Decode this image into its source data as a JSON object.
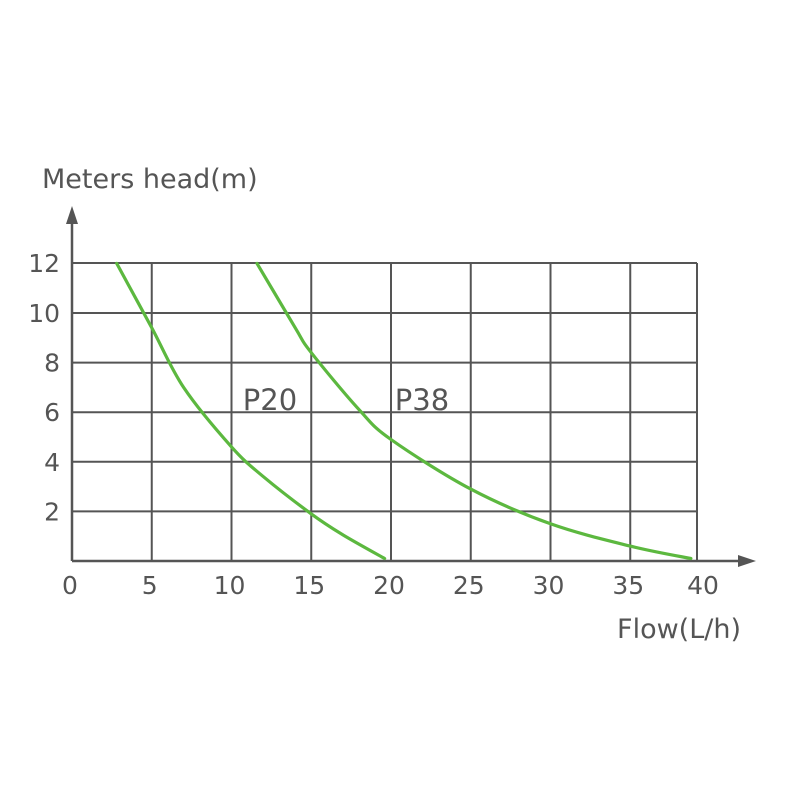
{
  "chart_data": {
    "type": "line",
    "ylabel": "Meters head(m)",
    "xlabel": "Flow(L/h)",
    "x_ticks": [
      "0",
      "5",
      "10",
      "15",
      "20",
      "25",
      "30",
      "35",
      "40"
    ],
    "y_ticks": [
      "2",
      "4",
      "6",
      "8",
      "10",
      "12"
    ],
    "xlim": [
      0,
      40
    ],
    "ylim": [
      0,
      12
    ],
    "grid": true,
    "line_color": "#5cb83f",
    "series": [
      {
        "name": "P20",
        "points": [
          [
            2.8,
            12
          ],
          [
            5,
            9.4
          ],
          [
            7,
            7.0
          ],
          [
            10,
            4.6
          ],
          [
            12,
            3.4
          ],
          [
            15,
            1.9
          ],
          [
            17,
            1.05
          ],
          [
            19.6,
            0.1
          ]
        ]
      },
      {
        "name": "P38",
        "points": [
          [
            11.6,
            12
          ],
          [
            14,
            9.4
          ],
          [
            15,
            8.4
          ],
          [
            18,
            6.1
          ],
          [
            20,
            4.9
          ],
          [
            25,
            2.9
          ],
          [
            30,
            1.5
          ],
          [
            35,
            0.6
          ],
          [
            38.8,
            0.1
          ]
        ]
      }
    ]
  }
}
